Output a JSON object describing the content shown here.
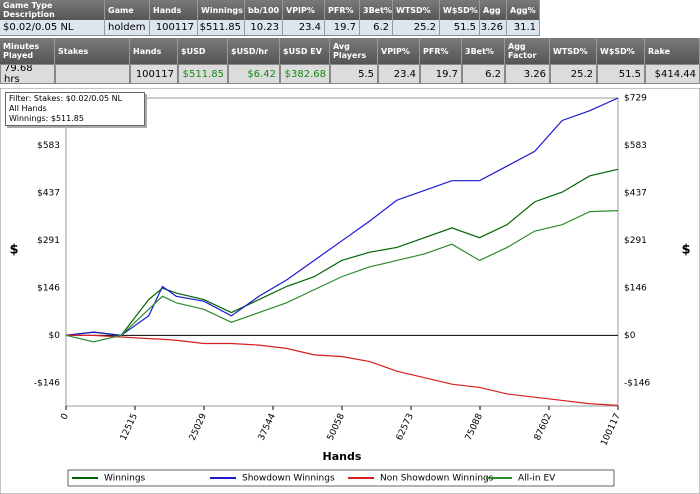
{
  "table1": {
    "headers": [
      "Game Type Description",
      "Game",
      "Hands",
      "Winnings",
      "bb/100",
      "VPIP%",
      "PFR%",
      "3Bet%",
      "WTSD%",
      "W$SD%",
      "Agg",
      "Agg%"
    ],
    "row": [
      "$0.02/0.05 NL",
      "holdem",
      "100117",
      "$511.85",
      "10.23",
      "23.4",
      "19.7",
      "6.2",
      "25.2",
      "51.5",
      "3.26",
      "31.1"
    ]
  },
  "table2": {
    "headers": [
      "Minutes Played",
      "Stakes",
      "Hands",
      "$USD",
      "$USD/hr",
      "$USD EV",
      "Avg Players",
      "VPIP%",
      "PFR%",
      "3Bet%",
      "Agg Factor",
      "WTSD%",
      "W$SD%",
      "Rake"
    ],
    "row": [
      "79.68 hrs",
      null,
      "100117",
      "$511.85",
      "$6.42",
      "$382.68",
      "5.5",
      "23.4",
      "19.7",
      "6.2",
      "3.26",
      "25.2",
      "51.5",
      "$414.44"
    ]
  },
  "filter": [
    "Filter: Stakes: $0.02/0.05 NL",
    "All Hands",
    "Winnings: $511.85"
  ],
  "chart_data": {
    "type": "line",
    "x_label": "Hands",
    "y_label": "$",
    "x": [
      0,
      5000,
      10000,
      15000,
      17500,
      20000,
      25000,
      30000,
      35000,
      40000,
      45000,
      50000,
      55000,
      60000,
      65000,
      70000,
      75000,
      80000,
      85000,
      90000,
      95000,
      100117
    ],
    "series": [
      {
        "name": "Winnings",
        "color": "#006400",
        "values": [
          0,
          10,
          0,
          110,
          145,
          130,
          110,
          70,
          110,
          150,
          180,
          230,
          255,
          270,
          300,
          330,
          300,
          340,
          410,
          440,
          490,
          510
        ]
      },
      {
        "name": "Showdown Winnings",
        "color": "#1a1ad0",
        "values": [
          0,
          10,
          0,
          60,
          150,
          120,
          105,
          60,
          120,
          170,
          230,
          290,
          350,
          415,
          445,
          475,
          475,
          520,
          565,
          660,
          690,
          729
        ]
      },
      {
        "name": "Non Showdown Winnings",
        "color": "#d42020",
        "values": [
          0,
          0,
          -5,
          -10,
          -12,
          -15,
          -25,
          -25,
          -30,
          -40,
          -60,
          -65,
          -80,
          -110,
          -130,
          -150,
          -160,
          -180,
          -190,
          -200,
          -210,
          -215
        ]
      },
      {
        "name": "All-in EV",
        "color": "#2e8b2e",
        "values": [
          0,
          -20,
          0,
          80,
          120,
          100,
          80,
          40,
          70,
          100,
          140,
          180,
          210,
          230,
          250,
          280,
          230,
          270,
          320,
          340,
          380,
          383
        ]
      }
    ],
    "xlim": [
      0,
      100117
    ],
    "xticks": [
      0,
      12515,
      25029,
      37544,
      50058,
      62573,
      75088,
      87602,
      100117
    ],
    "ylim": [
      -217,
      729
    ],
    "yticks": [
      {
        "value": -146,
        "label": "-$146"
      },
      {
        "value": 0,
        "label": "$0"
      },
      {
        "value": 146,
        "label": "$146"
      },
      {
        "value": 291,
        "label": "$291"
      },
      {
        "value": 437,
        "label": "$437"
      },
      {
        "value": 583,
        "label": "$583"
      },
      {
        "value": 729,
        "label": "$729"
      }
    ],
    "grid": false
  }
}
